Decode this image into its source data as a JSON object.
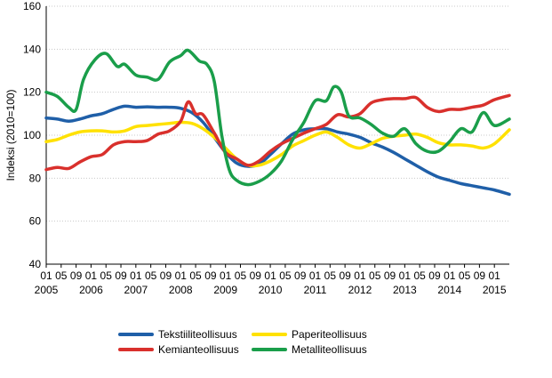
{
  "chart_data": {
    "type": "line",
    "ylabel": "Indeksi (2010=100)",
    "ylim": [
      40,
      160
    ],
    "yticks": [
      40,
      60,
      80,
      100,
      120,
      140,
      160
    ],
    "grid": "horizontal",
    "legend_position": "bottom",
    "x_start": "2005-01",
    "x_end": "2015-05",
    "month_ticks": [
      "01",
      "05",
      "09"
    ],
    "last_year_month_ticks": [
      "01"
    ],
    "years": [
      "2005",
      "2006",
      "2007",
      "2008",
      "2009",
      "2010",
      "2011",
      "2012",
      "2013",
      "2014",
      "2015"
    ],
    "series": [
      {
        "name": "Tekstiiliteollisuus",
        "color": "#1f5fa8",
        "points": [
          [
            "2005-01",
            108
          ],
          [
            "2005-04",
            107.5
          ],
          [
            "2005-07",
            106.5
          ],
          [
            "2005-10",
            107.5
          ],
          [
            "2006-01",
            109
          ],
          [
            "2006-04",
            110
          ],
          [
            "2006-07",
            112
          ],
          [
            "2006-10",
            113.5
          ],
          [
            "2007-01",
            113
          ],
          [
            "2007-04",
            113.2
          ],
          [
            "2007-07",
            113
          ],
          [
            "2007-10",
            113
          ],
          [
            "2008-01",
            112.5
          ],
          [
            "2008-04",
            110.5
          ],
          [
            "2008-07",
            106
          ],
          [
            "2008-10",
            99
          ],
          [
            "2009-01",
            92
          ],
          [
            "2009-04",
            87
          ],
          [
            "2009-07",
            85.5
          ],
          [
            "2009-10",
            86.5
          ],
          [
            "2010-01",
            91
          ],
          [
            "2010-04",
            96
          ],
          [
            "2010-07",
            100.5
          ],
          [
            "2010-10",
            102.5
          ],
          [
            "2011-01",
            103
          ],
          [
            "2011-04",
            103
          ],
          [
            "2011-07",
            101.5
          ],
          [
            "2011-10",
            100.5
          ],
          [
            "2012-01",
            99
          ],
          [
            "2012-04",
            96.5
          ],
          [
            "2012-07",
            94.5
          ],
          [
            "2012-10",
            92
          ],
          [
            "2013-01",
            89
          ],
          [
            "2013-04",
            86
          ],
          [
            "2013-07",
            83
          ],
          [
            "2013-10",
            80.5
          ],
          [
            "2014-01",
            79
          ],
          [
            "2014-04",
            77.5
          ],
          [
            "2014-07",
            76.5
          ],
          [
            "2014-10",
            75.5
          ],
          [
            "2015-01",
            74.5
          ],
          [
            "2015-05",
            72.5
          ]
        ]
      },
      {
        "name": "Paperiteollisuus",
        "color": "#ffe100",
        "points": [
          [
            "2005-01",
            97
          ],
          [
            "2005-04",
            98
          ],
          [
            "2005-07",
            100
          ],
          [
            "2005-10",
            101.5
          ],
          [
            "2006-01",
            102
          ],
          [
            "2006-04",
            102
          ],
          [
            "2006-07",
            101.5
          ],
          [
            "2006-10",
            102
          ],
          [
            "2007-01",
            104
          ],
          [
            "2007-04",
            104.5
          ],
          [
            "2007-07",
            105
          ],
          [
            "2007-10",
            105.5
          ],
          [
            "2008-01",
            106
          ],
          [
            "2008-04",
            105.5
          ],
          [
            "2008-07",
            103
          ],
          [
            "2008-10",
            99
          ],
          [
            "2009-01",
            94
          ],
          [
            "2009-04",
            89
          ],
          [
            "2009-07",
            86
          ],
          [
            "2009-10",
            86
          ],
          [
            "2010-01",
            88
          ],
          [
            "2010-04",
            91
          ],
          [
            "2010-07",
            95
          ],
          [
            "2010-10",
            97.5
          ],
          [
            "2011-01",
            100
          ],
          [
            "2011-04",
            101.5
          ],
          [
            "2011-07",
            99
          ],
          [
            "2011-10",
            95.5
          ],
          [
            "2012-01",
            94
          ],
          [
            "2012-04",
            96
          ],
          [
            "2012-07",
            98.5
          ],
          [
            "2012-10",
            99.5
          ],
          [
            "2013-01",
            100
          ],
          [
            "2013-04",
            100.5
          ],
          [
            "2013-07",
            99
          ],
          [
            "2013-10",
            96.5
          ],
          [
            "2014-01",
            95.5
          ],
          [
            "2014-04",
            95.5
          ],
          [
            "2014-07",
            95
          ],
          [
            "2014-10",
            94
          ],
          [
            "2015-01",
            96
          ],
          [
            "2015-05",
            102.5
          ]
        ]
      },
      {
        "name": "Kemianteollisuus",
        "color": "#d9302c",
        "points": [
          [
            "2005-01",
            84
          ],
          [
            "2005-04",
            85
          ],
          [
            "2005-07",
            84.5
          ],
          [
            "2005-10",
            87.5
          ],
          [
            "2006-01",
            90
          ],
          [
            "2006-04",
            91
          ],
          [
            "2006-07",
            95.5
          ],
          [
            "2006-10",
            97
          ],
          [
            "2007-01",
            97
          ],
          [
            "2007-04",
            97.5
          ],
          [
            "2007-07",
            100.5
          ],
          [
            "2007-10",
            102
          ],
          [
            "2008-01",
            106.5
          ],
          [
            "2008-03",
            115.5
          ],
          [
            "2008-05",
            110
          ],
          [
            "2008-07",
            109.5
          ],
          [
            "2008-10",
            101
          ],
          [
            "2009-01",
            92
          ],
          [
            "2009-04",
            89
          ],
          [
            "2009-07",
            86
          ],
          [
            "2009-10",
            88
          ],
          [
            "2010-01",
            92.5
          ],
          [
            "2010-04",
            96
          ],
          [
            "2010-07",
            98.5
          ],
          [
            "2010-10",
            101
          ],
          [
            "2011-01",
            103
          ],
          [
            "2011-04",
            105
          ],
          [
            "2011-07",
            109.5
          ],
          [
            "2011-10",
            108.5
          ],
          [
            "2012-01",
            110
          ],
          [
            "2012-04",
            115
          ],
          [
            "2012-07",
            116.5
          ],
          [
            "2012-10",
            117
          ],
          [
            "2013-01",
            117
          ],
          [
            "2013-04",
            117.5
          ],
          [
            "2013-07",
            113
          ],
          [
            "2013-10",
            111
          ],
          [
            "2014-01",
            112
          ],
          [
            "2014-04",
            112
          ],
          [
            "2014-07",
            113
          ],
          [
            "2014-10",
            114
          ],
          [
            "2015-01",
            116.5
          ],
          [
            "2015-05",
            118.5
          ]
        ]
      },
      {
        "name": "Metalliteollisuus",
        "color": "#1a9e4a",
        "points": [
          [
            "2005-01",
            120
          ],
          [
            "2005-04",
            118
          ],
          [
            "2005-07",
            113
          ],
          [
            "2005-09",
            112
          ],
          [
            "2005-11",
            126
          ],
          [
            "2006-02",
            135
          ],
          [
            "2006-05",
            138
          ],
          [
            "2006-08",
            132
          ],
          [
            "2006-10",
            133
          ],
          [
            "2007-01",
            128
          ],
          [
            "2007-04",
            127
          ],
          [
            "2007-07",
            126
          ],
          [
            "2007-10",
            134
          ],
          [
            "2008-01",
            137
          ],
          [
            "2008-03",
            139.5
          ],
          [
            "2008-06",
            134.5
          ],
          [
            "2008-08",
            133
          ],
          [
            "2008-10",
            125
          ],
          [
            "2008-12",
            100
          ],
          [
            "2009-02",
            84
          ],
          [
            "2009-04",
            79
          ],
          [
            "2009-07",
            77
          ],
          [
            "2009-10",
            78.5
          ],
          [
            "2010-01",
            82
          ],
          [
            "2010-04",
            88
          ],
          [
            "2010-07",
            98
          ],
          [
            "2010-10",
            106
          ],
          [
            "2011-01",
            116
          ],
          [
            "2011-04",
            116
          ],
          [
            "2011-06",
            122.5
          ],
          [
            "2011-08",
            120
          ],
          [
            "2011-10",
            109
          ],
          [
            "2012-01",
            108
          ],
          [
            "2012-04",
            105
          ],
          [
            "2012-07",
            101
          ],
          [
            "2012-10",
            99.5
          ],
          [
            "2013-01",
            103
          ],
          [
            "2013-04",
            96
          ],
          [
            "2013-07",
            92.5
          ],
          [
            "2013-10",
            92.5
          ],
          [
            "2014-01",
            97
          ],
          [
            "2014-04",
            103
          ],
          [
            "2014-07",
            101.5
          ],
          [
            "2014-10",
            110.5
          ],
          [
            "2015-01",
            104.5
          ],
          [
            "2015-05",
            107.5
          ]
        ]
      }
    ]
  }
}
